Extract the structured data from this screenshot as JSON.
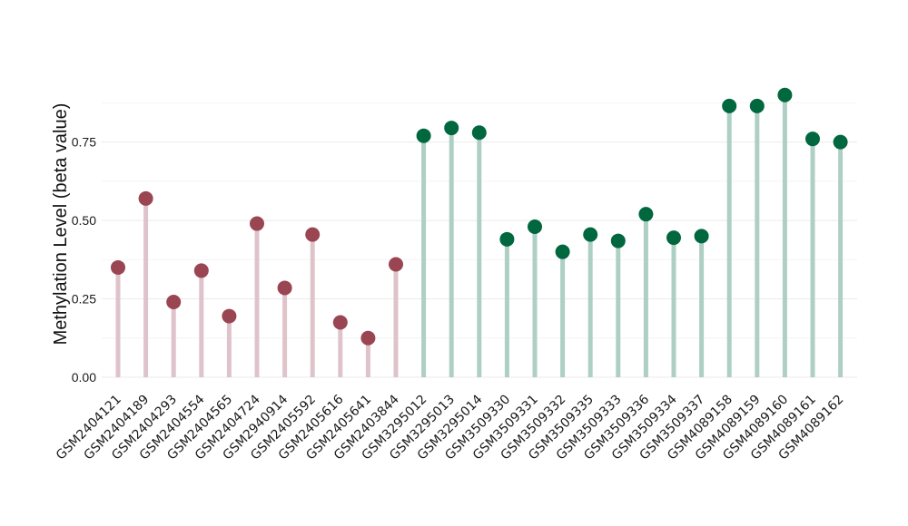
{
  "chart_data": {
    "type": "lollipop",
    "ylabel": "Methylation Level (beta value)",
    "xlabel": "",
    "ylim": [
      0,
      0.96
    ],
    "yticks": [
      0.0,
      0.25,
      0.5,
      0.75
    ],
    "ytick_labels": [
      "0.00",
      "0.25",
      "0.50",
      "0.75"
    ],
    "grid": true,
    "series": [
      {
        "color": "#9a4552",
        "stem_color": "#dfc3ca",
        "points": [
          {
            "x": "GSM2404121",
            "y": 0.35
          },
          {
            "x": "GSM2404189",
            "y": 0.57
          },
          {
            "x": "GSM2404293",
            "y": 0.24
          },
          {
            "x": "GSM2404554",
            "y": 0.34
          },
          {
            "x": "GSM2404565",
            "y": 0.195
          },
          {
            "x": "GSM2404724",
            "y": 0.49
          },
          {
            "x": "GSM2940914",
            "y": 0.285
          },
          {
            "x": "GSM2405592",
            "y": 0.455
          },
          {
            "x": "GSM2405616",
            "y": 0.175
          },
          {
            "x": "GSM2405641",
            "y": 0.125
          },
          {
            "x": "GSM2403844",
            "y": 0.36
          }
        ]
      },
      {
        "color": "#00673f",
        "stem_color": "#aecfc3",
        "points": [
          {
            "x": "GSM3295012",
            "y": 0.77
          },
          {
            "x": "GSM3295013",
            "y": 0.795
          },
          {
            "x": "GSM3295014",
            "y": 0.78
          },
          {
            "x": "GSM3509330",
            "y": 0.44
          },
          {
            "x": "GSM3509331",
            "y": 0.48
          },
          {
            "x": "GSM3509332",
            "y": 0.4
          },
          {
            "x": "GSM3509335",
            "y": 0.455
          },
          {
            "x": "GSM3509333",
            "y": 0.435
          },
          {
            "x": "GSM3509336",
            "y": 0.52
          },
          {
            "x": "GSM3509334",
            "y": 0.445
          },
          {
            "x": "GSM3509337",
            "y": 0.45
          },
          {
            "x": "GSM4089158",
            "y": 0.865
          },
          {
            "x": "GSM4089159",
            "y": 0.865
          },
          {
            "x": "GSM4089160",
            "y": 0.9
          },
          {
            "x": "GSM4089161",
            "y": 0.76
          },
          {
            "x": "GSM4089162",
            "y": 0.75
          }
        ]
      }
    ]
  }
}
